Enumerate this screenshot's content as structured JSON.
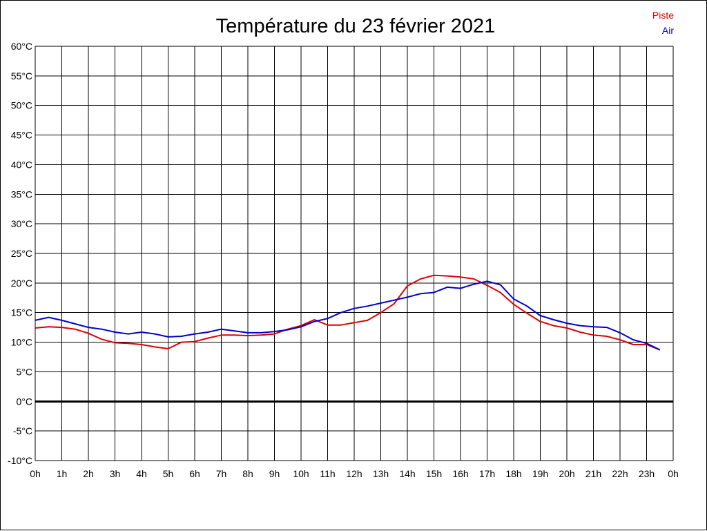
{
  "chart_data": {
    "type": "line",
    "title": "Température du 23 février 2021",
    "xlabel": "",
    "ylabel": "",
    "x_ticks": [
      "0h",
      "1h",
      "2h",
      "3h",
      "4h",
      "5h",
      "6h",
      "7h",
      "8h",
      "9h",
      "10h",
      "11h",
      "12h",
      "13h",
      "14h",
      "15h",
      "16h",
      "17h",
      "18h",
      "19h",
      "20h",
      "21h",
      "22h",
      "23h",
      "0h"
    ],
    "y_ticks": [
      "60°C",
      "55°C",
      "50°C",
      "45°C",
      "40°C",
      "35°C",
      "30°C",
      "25°C",
      "20°C",
      "15°C",
      "10°C",
      "5°C",
      "0°C",
      "-5°C",
      "-10°C"
    ],
    "xlim": [
      0,
      24
    ],
    "ylim": [
      -10,
      60
    ],
    "grid": true,
    "legend_position": "top-right",
    "zero_line": true,
    "series": [
      {
        "name": "Piste",
        "color": "#dd0000",
        "x": [
          0,
          0.5,
          1,
          1.5,
          2,
          2.5,
          3,
          3.5,
          4,
          4.5,
          5,
          5.5,
          6,
          6.5,
          7,
          7.5,
          8,
          8.5,
          9,
          9.5,
          10,
          10.5,
          11,
          11.5,
          12,
          12.5,
          13,
          13.5,
          14,
          14.5,
          15,
          15.5,
          16,
          16.5,
          17,
          17.5,
          18,
          18.5,
          19,
          19.5,
          20,
          20.5,
          21,
          21.5,
          22,
          22.5,
          23,
          23.5
        ],
        "values": [
          12.4,
          12.6,
          12.5,
          12.2,
          11.5,
          10.5,
          9.9,
          9.8,
          9.6,
          9.2,
          8.9,
          10.0,
          10.1,
          10.7,
          11.2,
          11.2,
          11.1,
          11.2,
          11.4,
          12.2,
          12.8,
          13.8,
          12.9,
          12.9,
          13.3,
          13.7,
          15.0,
          16.5,
          19.5,
          20.7,
          21.3,
          21.2,
          21.0,
          20.7,
          19.6,
          18.4,
          16.4,
          14.9,
          13.5,
          12.8,
          12.4,
          11.7,
          11.2,
          11.0,
          10.4,
          9.6,
          9.6,
          8.7
        ]
      },
      {
        "name": "Air",
        "color": "#0000cc",
        "x": [
          0,
          0.5,
          1,
          1.5,
          2,
          2.5,
          3,
          3.5,
          4,
          4.5,
          5,
          5.5,
          6,
          6.5,
          7,
          7.5,
          8,
          8.5,
          9,
          9.5,
          10,
          10.5,
          11,
          11.5,
          12,
          12.5,
          13,
          13.5,
          14,
          14.5,
          15,
          15.5,
          16,
          16.5,
          17,
          17.5,
          18,
          18.5,
          19,
          19.5,
          20,
          20.5,
          21,
          21.5,
          22,
          22.5,
          23,
          23.5
        ],
        "values": [
          13.7,
          14.2,
          13.7,
          13.1,
          12.5,
          12.2,
          11.7,
          11.4,
          11.7,
          11.4,
          10.9,
          11.0,
          11.4,
          11.7,
          12.2,
          11.9,
          11.6,
          11.6,
          11.8,
          12.1,
          12.6,
          13.5,
          14.0,
          15.0,
          15.7,
          16.1,
          16.6,
          17.1,
          17.6,
          18.2,
          18.4,
          19.3,
          19.1,
          19.8,
          20.3,
          19.7,
          17.3,
          16.1,
          14.5,
          13.8,
          13.2,
          12.8,
          12.6,
          12.5,
          11.6,
          10.4,
          9.8,
          8.7
        ]
      }
    ]
  }
}
